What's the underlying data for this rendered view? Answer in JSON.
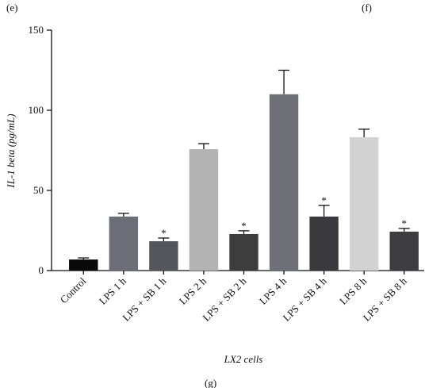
{
  "panel_labels": {
    "left": "(e)",
    "right": "(f)",
    "bottom": "(g)"
  },
  "chart_data": {
    "type": "bar",
    "y_label": "IL-1 beta (pg/mL)",
    "x_label": "LX2 cells",
    "categories": [
      "Control",
      "LPS 1 h",
      "LPS + SB 1 h",
      "LPS 2 h",
      "LPS + SB 2 h",
      "LPS 4 h",
      "LPS + SB 4 h",
      "LPS 8 h",
      "LPS + SB 8 h"
    ],
    "values": [
      6.9,
      33.7,
      18.3,
      75.7,
      22.8,
      110,
      33.7,
      83.2,
      24.3
    ],
    "errors": [
      1,
      2,
      2,
      3.5,
      2,
      15,
      7,
      5,
      2
    ],
    "colors": [
      "#0a0a0a",
      "#6e6e78",
      "#55555c",
      "#b3b3b3",
      "#3d3d3d",
      "#707078",
      "#3a3a3e",
      "#d3d3d3",
      "#3d3d40"
    ],
    "annotations": [
      null,
      null,
      "*",
      null,
      "*",
      null,
      "*",
      null,
      "*"
    ],
    "ylim": [
      0,
      150
    ],
    "yticks": [
      0,
      50,
      100,
      150
    ]
  }
}
